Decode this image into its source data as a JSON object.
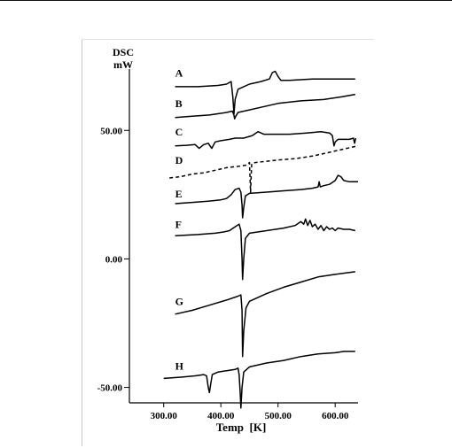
{
  "chart_data": {
    "type": "line",
    "ylabel_line1": "DSC",
    "ylabel_line2": "mW",
    "xlabel": "Temp  [K]",
    "x_ticks": [
      "300.00",
      "400.00",
      "500.00",
      "600.00"
    ],
    "y_ticks": [
      "50.00",
      "0.00",
      "-50.00"
    ],
    "xlim": [
      240,
      640
    ],
    "ylim": [
      -56,
      78
    ],
    "grid": false,
    "series": [
      {
        "name": "A",
        "style": "solid",
        "label_x": 320,
        "label_y": 71,
        "points": [
          [
            320,
            67
          ],
          [
            360,
            67
          ],
          [
            395,
            67.5
          ],
          [
            410,
            68
          ],
          [
            418,
            69
          ],
          [
            421,
            63
          ],
          [
            423,
            56.5
          ],
          [
            425,
            62
          ],
          [
            430,
            66
          ],
          [
            450,
            68
          ],
          [
            470,
            69
          ],
          [
            485,
            70
          ],
          [
            490,
            72.5
          ],
          [
            495,
            73
          ],
          [
            500,
            71
          ],
          [
            505,
            69.5
          ],
          [
            520,
            69.5
          ],
          [
            560,
            70
          ],
          [
            600,
            70
          ],
          [
            635,
            70
          ]
        ]
      },
      {
        "name": "B",
        "style": "solid",
        "label_x": 320,
        "label_y": 59,
        "points": [
          [
            320,
            55
          ],
          [
            350,
            55.5
          ],
          [
            380,
            56
          ],
          [
            410,
            57
          ],
          [
            420,
            57.5
          ],
          [
            423,
            56
          ],
          [
            424,
            54.5
          ],
          [
            426,
            55.5
          ],
          [
            430,
            57
          ],
          [
            450,
            58
          ],
          [
            470,
            59
          ],
          [
            500,
            60.5
          ],
          [
            540,
            61.5
          ],
          [
            580,
            62
          ],
          [
            610,
            63
          ],
          [
            635,
            64
          ]
        ]
      },
      {
        "name": "C",
        "style": "solid",
        "label_x": 320,
        "label_y": 48,
        "points": [
          [
            320,
            44
          ],
          [
            340,
            44.2
          ],
          [
            355,
            44.5
          ],
          [
            362,
            43
          ],
          [
            370,
            44.5
          ],
          [
            378,
            45
          ],
          [
            384,
            43
          ],
          [
            390,
            45.5
          ],
          [
            400,
            46
          ],
          [
            415,
            46.5
          ],
          [
            425,
            47
          ],
          [
            440,
            47
          ],
          [
            455,
            48
          ],
          [
            465,
            49.5
          ],
          [
            475,
            48.5
          ],
          [
            490,
            48.5
          ],
          [
            520,
            48.5
          ],
          [
            550,
            49
          ],
          [
            575,
            49.5
          ],
          [
            590,
            49
          ],
          [
            595,
            48
          ],
          [
            598,
            44
          ],
          [
            600,
            45.5
          ],
          [
            605,
            46.5
          ],
          [
            615,
            46.5
          ],
          [
            625,
            46.5
          ],
          [
            632,
            47
          ],
          [
            634,
            45
          ],
          [
            636,
            47
          ]
        ]
      },
      {
        "name": "D",
        "style": "dashed",
        "label_x": 320,
        "label_y": 37,
        "points": [
          [
            310,
            31.5
          ],
          [
            330,
            32
          ],
          [
            350,
            33
          ],
          [
            370,
            33.5
          ],
          [
            390,
            34.5
          ],
          [
            410,
            35.5
          ],
          [
            430,
            36
          ],
          [
            445,
            36.5
          ],
          [
            450,
            37.5
          ],
          [
            452,
            26
          ],
          [
            454,
            37
          ],
          [
            460,
            37.5
          ],
          [
            480,
            38
          ],
          [
            500,
            38.5
          ],
          [
            530,
            39
          ],
          [
            560,
            40
          ],
          [
            590,
            41.5
          ],
          [
            620,
            43
          ],
          [
            640,
            44
          ]
        ]
      },
      {
        "name": "E",
        "style": "solid",
        "label_x": 320,
        "label_y": 24,
        "points": [
          [
            320,
            21.5
          ],
          [
            350,
            22
          ],
          [
            380,
            22.5
          ],
          [
            400,
            23
          ],
          [
            410,
            23.5
          ],
          [
            418,
            25
          ],
          [
            425,
            27
          ],
          [
            432,
            27.5
          ],
          [
            435,
            26
          ],
          [
            437,
            21
          ],
          [
            438,
            16
          ],
          [
            440,
            20
          ],
          [
            443,
            24.5
          ],
          [
            450,
            25.5
          ],
          [
            480,
            26
          ],
          [
            510,
            26.5
          ],
          [
            540,
            27
          ],
          [
            560,
            27.5
          ],
          [
            570,
            28
          ],
          [
            572,
            30
          ],
          [
            574,
            28
          ],
          [
            580,
            28.5
          ],
          [
            590,
            29
          ],
          [
            600,
            30.5
          ],
          [
            605,
            32.5
          ],
          [
            610,
            32
          ],
          [
            615,
            30.5
          ],
          [
            625,
            30
          ],
          [
            640,
            30
          ]
        ]
      },
      {
        "name": "F",
        "style": "solid",
        "label_x": 320,
        "label_y": 12,
        "points": [
          [
            320,
            9
          ],
          [
            360,
            9.5
          ],
          [
            390,
            10
          ],
          [
            405,
            10.5
          ],
          [
            415,
            11
          ],
          [
            425,
            12.5
          ],
          [
            432,
            13.5
          ],
          [
            435,
            11
          ],
          [
            437,
            0
          ],
          [
            438,
            -8
          ],
          [
            440,
            0
          ],
          [
            443,
            8
          ],
          [
            450,
            10
          ],
          [
            480,
            11
          ],
          [
            510,
            12
          ],
          [
            530,
            13
          ],
          [
            540,
            14.5
          ],
          [
            545,
            13.5
          ],
          [
            548,
            15.5
          ],
          [
            552,
            13
          ],
          [
            556,
            15
          ],
          [
            560,
            12.5
          ],
          [
            565,
            13.5
          ],
          [
            570,
            11.5
          ],
          [
            575,
            13
          ],
          [
            580,
            11
          ],
          [
            585,
            12.5
          ],
          [
            590,
            11.5
          ],
          [
            595,
            12
          ],
          [
            600,
            11
          ],
          [
            605,
            12
          ],
          [
            615,
            11.5
          ],
          [
            625,
            11.5
          ],
          [
            635,
            11
          ]
        ]
      },
      {
        "name": "G",
        "style": "solid",
        "label_x": 320,
        "label_y": -18,
        "points": [
          [
            320,
            -21.5
          ],
          [
            350,
            -20
          ],
          [
            380,
            -18
          ],
          [
            410,
            -16
          ],
          [
            430,
            -14.5
          ],
          [
            435,
            -14
          ],
          [
            437,
            -20
          ],
          [
            438,
            -38
          ],
          [
            440,
            -28
          ],
          [
            444,
            -19
          ],
          [
            450,
            -16.5
          ],
          [
            480,
            -13.5
          ],
          [
            510,
            -11
          ],
          [
            540,
            -9
          ],
          [
            570,
            -7
          ],
          [
            600,
            -6
          ],
          [
            635,
            -5
          ]
        ]
      },
      {
        "name": "H",
        "style": "solid",
        "label_x": 320,
        "label_y": -43,
        "points": [
          [
            300,
            -46.5
          ],
          [
            330,
            -46
          ],
          [
            355,
            -45.5
          ],
          [
            370,
            -45
          ],
          [
            375,
            -45.5
          ],
          [
            378,
            -50
          ],
          [
            380,
            -52
          ],
          [
            382,
            -49
          ],
          [
            385,
            -45
          ],
          [
            395,
            -44
          ],
          [
            410,
            -43.5
          ],
          [
            425,
            -43
          ],
          [
            430,
            -42.5
          ],
          [
            432,
            -45
          ],
          [
            434,
            -52.5
          ],
          [
            435,
            -58
          ],
          [
            437,
            -50
          ],
          [
            440,
            -44
          ],
          [
            450,
            -42
          ],
          [
            480,
            -40.5
          ],
          [
            510,
            -39.5
          ],
          [
            540,
            -38
          ],
          [
            570,
            -37
          ],
          [
            600,
            -36.5
          ],
          [
            615,
            -36
          ],
          [
            635,
            -36
          ]
        ]
      }
    ]
  }
}
